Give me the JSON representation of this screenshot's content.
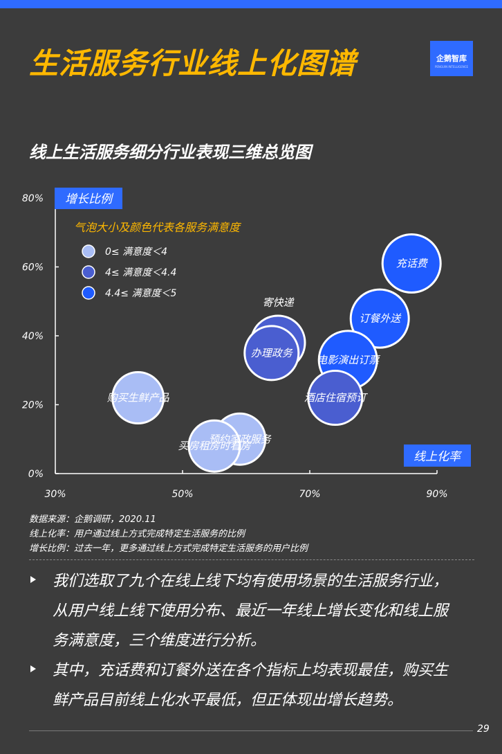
{
  "header": {
    "title": "生活服务行业线上化图谱",
    "logo_text": "企鹅智库",
    "logo_sub": "PENGUIN INTELLIGENCE",
    "subtitle": "线上生活服务细分行业表现三维总览图"
  },
  "colors": {
    "bar": "#2f6bff",
    "title": "#ffb800",
    "background": "#3c3c3c",
    "legend_title": "#ffb800",
    "level_low": "#a9bdf5",
    "level_mid": "#4a5ed0",
    "level_high": "#1f5bff"
  },
  "chart_data": {
    "type": "scatter",
    "xlabel": "线上化率",
    "ylabel": "增长比例",
    "xlim": [
      30,
      90
    ],
    "ylim": [
      0,
      80
    ],
    "x_ticks": [
      "30%",
      "50%",
      "70%",
      "90%"
    ],
    "y_ticks": [
      "0%",
      "20%",
      "40%",
      "60%",
      "80%"
    ],
    "legend": {
      "title": "气泡大小及颜色代表各服务满意度",
      "entries": [
        {
          "label": "0≤ 满意度＜4",
          "level": "low"
        },
        {
          "label": "4≤ 满意度＜4.4",
          "level": "mid"
        },
        {
          "label": "4.4≤ 满意度＜5",
          "level": "high"
        }
      ]
    },
    "points": [
      {
        "label": "充话费",
        "x": 86,
        "y": 61,
        "satisfaction_level": "high"
      },
      {
        "label": "订餐外送",
        "x": 81,
        "y": 45,
        "satisfaction_level": "high"
      },
      {
        "label": "电影演出订票",
        "x": 76,
        "y": 33,
        "satisfaction_level": "high"
      },
      {
        "label": "酒店住宿预订",
        "x": 74,
        "y": 22,
        "satisfaction_level": "mid"
      },
      {
        "label": "寄快递",
        "x": 65,
        "y": 38,
        "satisfaction_level": "mid"
      },
      {
        "label": "办理政务",
        "x": 64,
        "y": 35,
        "satisfaction_level": "mid"
      },
      {
        "label": "购买生鲜产品",
        "x": 43,
        "y": 22,
        "satisfaction_level": "low"
      },
      {
        "label": "预约家政服务",
        "x": 59,
        "y": 10,
        "satisfaction_level": "low"
      },
      {
        "label": "买房租房时看房",
        "x": 55,
        "y": 8,
        "satisfaction_level": "low"
      }
    ]
  },
  "notes": {
    "source": "数据来源：企鹅调研，2020.11",
    "def_online": "线上化率：用户通过线上方式完成特定生活服务的比例",
    "def_growth": "增长比例：过去一年，更多通过线上方式完成特定生活服务的用户比例"
  },
  "bullets": [
    "我们选取了九个在线上线下均有使用场景的生活服务行业，从用户线上线下使用分布、最近一年线上增长变化和线上服务满意度，三个维度进行分析。",
    "其中，充话费和订餐外送在各个指标上均表现最佳，购买生鲜产品目前线上化水平最低，但正体现出增长趋势。"
  ],
  "page_number": "29"
}
